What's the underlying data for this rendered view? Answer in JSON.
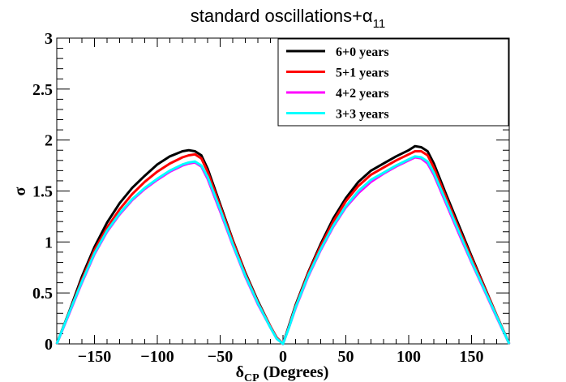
{
  "chart_data": {
    "type": "line",
    "title": "standard oscillations+α",
    "title_subscript": "11",
    "xlabel": "δ",
    "xlabel_subscript": "CP",
    "xlabel_suffix": " (Degrees)",
    "ylabel": "σ",
    "xlim": [
      -180,
      180
    ],
    "ylim": [
      0,
      3
    ],
    "x_ticks": [
      -150,
      -100,
      -50,
      0,
      50,
      100,
      150
    ],
    "x_tick_labels": [
      "−150",
      "−100",
      "−50",
      "0",
      "50",
      "100",
      "150"
    ],
    "y_ticks": [
      0,
      0.5,
      1,
      1.5,
      2,
      2.5,
      3
    ],
    "y_tick_labels": [
      "0",
      "0.5",
      "1",
      "1.5",
      "2",
      "2.5",
      "3"
    ],
    "legend_position": "top-right",
    "series": [
      {
        "name": "6+0 years",
        "color": "#000000",
        "x": [
          -180,
          -170,
          -160,
          -150,
          -140,
          -130,
          -120,
          -110,
          -100,
          -90,
          -80,
          -75,
          -70,
          -65,
          -60,
          -50,
          -40,
          -30,
          -20,
          -10,
          -5,
          0,
          5,
          10,
          20,
          30,
          40,
          50,
          60,
          70,
          80,
          90,
          100,
          105,
          110,
          115,
          120,
          130,
          140,
          150,
          160,
          170,
          180
        ],
        "y": [
          0,
          0.32,
          0.66,
          0.95,
          1.19,
          1.38,
          1.53,
          1.65,
          1.76,
          1.84,
          1.89,
          1.9,
          1.89,
          1.85,
          1.72,
          1.37,
          1.02,
          0.7,
          0.42,
          0.17,
          0.06,
          0,
          0.19,
          0.38,
          0.7,
          0.98,
          1.23,
          1.43,
          1.59,
          1.7,
          1.77,
          1.84,
          1.9,
          1.94,
          1.93,
          1.89,
          1.77,
          1.46,
          1.16,
          0.86,
          0.57,
          0.28,
          0
        ]
      },
      {
        "name": "5+1 years",
        "color": "#ff0000",
        "x": [
          -180,
          -170,
          -160,
          -150,
          -140,
          -130,
          -120,
          -110,
          -100,
          -90,
          -80,
          -75,
          -70,
          -65,
          -60,
          -50,
          -40,
          -30,
          -20,
          -10,
          -5,
          0,
          5,
          10,
          20,
          30,
          40,
          50,
          60,
          70,
          80,
          90,
          100,
          105,
          110,
          115,
          120,
          130,
          140,
          150,
          160,
          170,
          180
        ],
        "y": [
          0,
          0.31,
          0.63,
          0.92,
          1.14,
          1.32,
          1.47,
          1.59,
          1.69,
          1.77,
          1.83,
          1.85,
          1.86,
          1.82,
          1.69,
          1.35,
          1.01,
          0.69,
          0.41,
          0.17,
          0.06,
          0,
          0.18,
          0.37,
          0.69,
          0.96,
          1.2,
          1.4,
          1.55,
          1.66,
          1.73,
          1.8,
          1.86,
          1.89,
          1.89,
          1.85,
          1.73,
          1.43,
          1.13,
          0.84,
          0.56,
          0.28,
          0
        ]
      },
      {
        "name": "4+2 years",
        "color": "#ff00ff",
        "x": [
          -180,
          -170,
          -160,
          -150,
          -140,
          -130,
          -120,
          -110,
          -100,
          -90,
          -80,
          -75,
          -70,
          -65,
          -60,
          -50,
          -40,
          -30,
          -20,
          -10,
          -5,
          0,
          5,
          10,
          20,
          30,
          40,
          50,
          60,
          70,
          80,
          90,
          100,
          105,
          110,
          115,
          120,
          130,
          140,
          150,
          160,
          170,
          180
        ],
        "y": [
          0,
          0.3,
          0.6,
          0.88,
          1.1,
          1.27,
          1.41,
          1.52,
          1.61,
          1.69,
          1.75,
          1.77,
          1.78,
          1.74,
          1.62,
          1.3,
          0.97,
          0.66,
          0.39,
          0.16,
          0.05,
          0,
          0.17,
          0.35,
          0.66,
          0.92,
          1.15,
          1.34,
          1.48,
          1.59,
          1.67,
          1.74,
          1.8,
          1.83,
          1.82,
          1.77,
          1.66,
          1.37,
          1.08,
          0.8,
          0.53,
          0.26,
          0
        ]
      },
      {
        "name": "3+3 years",
        "color": "#00ffff",
        "x": [
          -180,
          -170,
          -160,
          -150,
          -140,
          -130,
          -120,
          -110,
          -100,
          -90,
          -80,
          -75,
          -70,
          -65,
          -60,
          -50,
          -40,
          -30,
          -20,
          -10,
          -5,
          0,
          5,
          10,
          20,
          30,
          40,
          50,
          60,
          70,
          80,
          90,
          100,
          105,
          110,
          115,
          120,
          130,
          140,
          150,
          160,
          170,
          180
        ],
        "y": [
          0,
          0.31,
          0.61,
          0.89,
          1.11,
          1.28,
          1.42,
          1.53,
          1.62,
          1.7,
          1.76,
          1.78,
          1.79,
          1.75,
          1.64,
          1.32,
          0.98,
          0.67,
          0.4,
          0.16,
          0.05,
          0,
          0.17,
          0.36,
          0.67,
          0.93,
          1.16,
          1.35,
          1.5,
          1.61,
          1.68,
          1.75,
          1.81,
          1.84,
          1.83,
          1.79,
          1.68,
          1.39,
          1.1,
          0.81,
          0.54,
          0.27,
          0
        ]
      }
    ]
  }
}
